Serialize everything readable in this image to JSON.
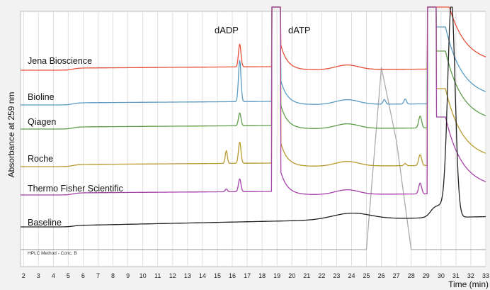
{
  "chart_data": {
    "type": "line",
    "title": "",
    "xlabel": "Time (min)",
    "ylabel": "Absorbance at 259 nm",
    "xlim": [
      1.8,
      33
    ],
    "x_ticks": [
      2,
      3,
      4,
      5,
      6,
      7,
      8,
      9,
      10,
      11,
      12,
      13,
      14,
      15,
      16,
      17,
      18,
      19,
      20,
      21,
      22,
      23,
      24,
      25,
      26,
      27,
      28,
      29,
      30,
      31,
      32,
      33
    ],
    "grid": true,
    "legend": "inline labels left of traces",
    "annotations": [
      {
        "text": "dADP",
        "x": 16.5
      },
      {
        "text": "dATP",
        "x": 19.9
      }
    ],
    "method_trace": {
      "name": "HPLC Method - Conc. B",
      "color": "#aaaaaa",
      "points": [
        [
          1.8,
          0
        ],
        [
          25.0,
          0
        ],
        [
          26.0,
          100
        ],
        [
          27.0,
          60
        ],
        [
          28.0,
          0
        ],
        [
          33,
          0
        ]
      ]
    },
    "series": [
      {
        "name": "Jena Bioscience",
        "color": "#e8503a"
      },
      {
        "name": "Bioline",
        "color": "#5b9bc2"
      },
      {
        "name": "Qiagen",
        "color": "#5e9e4a"
      },
      {
        "name": "Roche",
        "color": "#b89a2e"
      },
      {
        "name": "Thermo Fisher Scientific",
        "color": "#a642a8"
      },
      {
        "name": "Baseline",
        "color": "#222222"
      }
    ]
  }
}
